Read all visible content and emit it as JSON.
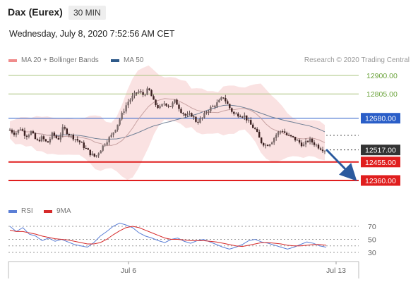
{
  "header": {
    "title": "Dax (Eurex)",
    "timeframe": "30 MIN",
    "date": "Wednesday, July 8, 2020 7:52:56 AM CET"
  },
  "legend": {
    "bollinger": {
      "label": "MA 20 + Bollinger Bands",
      "color": "#f08c8c"
    },
    "ma50": {
      "label": "MA 50",
      "color": "#2f5a8a"
    }
  },
  "credit": "Research © 2020 Trading Central",
  "rsi_legend": {
    "rsi": {
      "label": "RSI",
      "color": "#5b7fd6"
    },
    "ma9": {
      "label": "9MA",
      "color": "#d62a2a"
    }
  },
  "chart_data": {
    "type": "candlestick",
    "x_ticks": [
      "Jul 6",
      "Jul 13"
    ],
    "price_levels": [
      {
        "value": 12900.0,
        "label": "12900.00",
        "style": "resistance",
        "color": "#a9c47f"
      },
      {
        "value": 12805.0,
        "label": "12805.00",
        "style": "resistance",
        "color": "#a9c47f"
      },
      {
        "value": 12680.0,
        "label": "12680.00",
        "style": "pivot",
        "color": "#2a5ec8"
      },
      {
        "value": 12517.0,
        "label": "12517.00",
        "style": "last",
        "color": "#333333"
      },
      {
        "value": 12455.0,
        "label": "12455.00",
        "style": "support",
        "color": "#e01e1e"
      },
      {
        "value": 12360.0,
        "label": "12360.00",
        "style": "support",
        "color": "#e01e1e"
      }
    ],
    "price_path": [
      12620,
      12600,
      12630,
      12590,
      12610,
      12560,
      12580,
      12550,
      12600,
      12570,
      12630,
      12600,
      12580,
      12560,
      12530,
      12500,
      12480,
      12520,
      12560,
      12590,
      12640,
      12700,
      12760,
      12790,
      12820,
      12800,
      12830,
      12760,
      12730,
      12760,
      12740,
      12770,
      12720,
      12690,
      12700,
      12660,
      12680,
      12720,
      12740,
      12760,
      12790,
      12740,
      12700,
      12700,
      12690,
      12650,
      12620,
      12560,
      12540,
      12560,
      12600,
      12620,
      12590,
      12580,
      12560,
      12540,
      12570,
      12550,
      12530,
      12517
    ],
    "rsi": {
      "levels": [
        70,
        50,
        40,
        30
      ],
      "labels": [
        "70",
        "50",
        "",
        "30"
      ],
      "rsi_values": [
        70,
        62,
        68,
        58,
        55,
        48,
        52,
        47,
        50,
        46,
        42,
        40,
        38,
        45,
        55,
        62,
        70,
        75,
        72,
        68,
        60,
        55,
        52,
        48,
        45,
        50,
        52,
        47,
        44,
        48,
        50,
        46,
        42,
        38,
        35,
        38,
        42,
        48,
        50,
        46,
        44,
        41,
        38,
        35,
        38,
        42,
        46,
        44,
        40,
        38
      ],
      "ma9_values": [
        64,
        62,
        62,
        60,
        58,
        55,
        53,
        51,
        50,
        49,
        47,
        45,
        43,
        43,
        45,
        50,
        57,
        63,
        68,
        70,
        68,
        64,
        60,
        56,
        52,
        50,
        50,
        49,
        48,
        48,
        48,
        47,
        46,
        44,
        42,
        40,
        39,
        41,
        43,
        45,
        45,
        44,
        43,
        41,
        40,
        40,
        41,
        42,
        42,
        41
      ]
    }
  }
}
